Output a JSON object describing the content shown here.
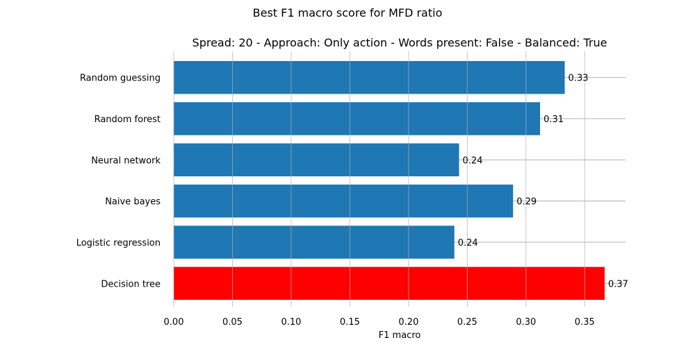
{
  "chart_data": {
    "type": "bar",
    "orientation": "horizontal",
    "suptitle": "Best F1 macro score for MFD ratio",
    "title": "Spread: 20 - Approach: Only action - Words present: False - Balanced: True",
    "xlabel": "F1 macro",
    "ylabel": "",
    "categories": [
      "Random guessing",
      "Random forest",
      "Neural network",
      "Naive bayes",
      "Logistic regression",
      "Decision tree"
    ],
    "values": [
      0.333,
      0.312,
      0.243,
      0.289,
      0.239,
      0.367
    ],
    "data_labels": [
      "0.33",
      "0.31",
      "0.24",
      "0.29",
      "0.24",
      "0.37"
    ],
    "highlight_index": 5,
    "xlim": [
      0,
      0.385
    ],
    "xticks": [
      "0.00",
      "0.05",
      "0.10",
      "0.15",
      "0.20",
      "0.25",
      "0.30",
      "0.35"
    ],
    "grid": true,
    "colors": {
      "bar": "#1f77b4",
      "highlight": "#ff0000",
      "grid": "#b0b0b0"
    }
  }
}
